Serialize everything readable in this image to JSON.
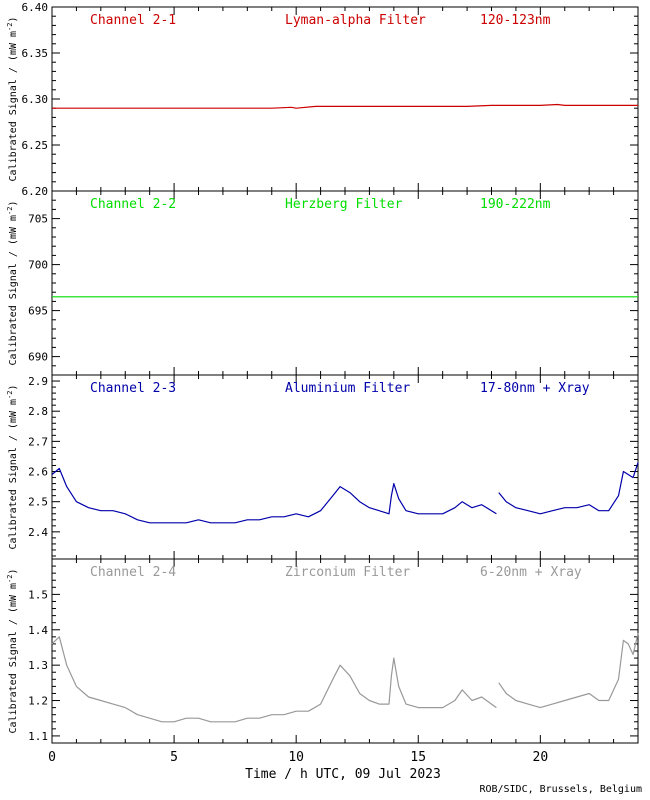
{
  "chart_data": {
    "type": "line",
    "xlabel": "Time / h UTC, 09 Jul 2023",
    "credit": "ROB/SIDC, Brussels, Belgium",
    "xlim": [
      0,
      24
    ],
    "xticks": [
      0,
      5,
      10,
      15,
      20
    ],
    "panels": [
      {
        "name": "Channel 2-1",
        "filter": "Lyman-alpha Filter",
        "band": "120-123nm",
        "color": "#cc0000",
        "ylabel": "Calibrated Signal / (mW m",
        "ylabel_sup": "-2",
        "ylim": [
          6.2,
          6.4
        ],
        "yticks": [
          "6.20",
          "6.25",
          "6.30",
          "6.35",
          "6.40"
        ],
        "series": {
          "x": [
            0,
            1,
            2,
            3,
            4,
            5,
            6,
            7,
            8,
            9,
            9.8,
            10,
            10.8,
            11,
            12,
            13,
            14,
            15,
            16,
            17,
            18,
            19,
            20,
            20.7,
            21,
            22,
            23,
            24
          ],
          "y": [
            6.29,
            6.29,
            6.29,
            6.29,
            6.29,
            6.29,
            6.29,
            6.29,
            6.29,
            6.29,
            6.291,
            6.29,
            6.292,
            6.292,
            6.292,
            6.292,
            6.292,
            6.292,
            6.292,
            6.292,
            6.293,
            6.293,
            6.293,
            6.294,
            6.293,
            6.293,
            6.293,
            6.293
          ]
        }
      },
      {
        "name": "Channel 2-2",
        "filter": "Herzberg Filter",
        "band": "190-222nm",
        "color": "#00dd00",
        "ylabel": "Calibrated Signal / (mW m",
        "ylabel_sup": "-2",
        "ylim": [
          688,
          708
        ],
        "yticks": [
          "690",
          "695",
          "700",
          "705"
        ],
        "series": {
          "x": [
            0,
            4,
            8,
            12,
            16,
            20,
            24
          ],
          "y": [
            696.5,
            696.5,
            696.5,
            696.5,
            696.5,
            696.5,
            696.5
          ]
        }
      },
      {
        "name": "Channel 2-3",
        "filter": "Aluminium Filter",
        "band": "17-80nm + Xray",
        "color": "#0000aa",
        "ylabel": "Calibrated Signal / (mW m",
        "ylabel_sup": "-2",
        "ylim": [
          2.31,
          2.92
        ],
        "yticks": [
          "2.4",
          "2.5",
          "2.6",
          "2.7",
          "2.8",
          "2.9"
        ],
        "series": {
          "x": [
            0,
            0.3,
            0.6,
            1,
            1.5,
            2,
            2.5,
            3,
            3.5,
            4,
            4.5,
            5,
            5.5,
            6,
            6.5,
            7,
            7.5,
            8,
            8.5,
            9,
            9.5,
            10,
            10.5,
            11,
            11.5,
            11.8,
            12.2,
            12.6,
            13,
            13.4,
            13.8,
            13.9,
            14.0,
            14.2,
            14.5,
            15,
            15.5,
            16,
            16.5,
            16.8,
            17.2,
            17.6,
            18.0,
            18.2,
            null,
            18.3,
            18.6,
            19,
            19.5,
            20,
            20.5,
            21,
            21.5,
            22,
            22.4,
            22.8,
            23.2,
            23.4,
            23.6,
            23.8,
            24
          ],
          "y": [
            2.59,
            2.61,
            2.55,
            2.5,
            2.48,
            2.47,
            2.47,
            2.46,
            2.44,
            2.43,
            2.43,
            2.43,
            2.43,
            2.44,
            2.43,
            2.43,
            2.43,
            2.44,
            2.44,
            2.45,
            2.45,
            2.46,
            2.45,
            2.47,
            2.52,
            2.55,
            2.53,
            2.5,
            2.48,
            2.47,
            2.46,
            2.52,
            2.56,
            2.51,
            2.47,
            2.46,
            2.46,
            2.46,
            2.48,
            2.5,
            2.48,
            2.49,
            2.47,
            2.46,
            null,
            2.53,
            2.5,
            2.48,
            2.47,
            2.46,
            2.47,
            2.48,
            2.48,
            2.49,
            2.47,
            2.47,
            2.52,
            2.6,
            2.59,
            2.58,
            2.63
          ]
        }
      },
      {
        "name": "Channel 2-4",
        "filter": "Zirconium Filter",
        "band": "6-20nm + Xray",
        "color": "#999999",
        "ylabel": "Calibrated Signal / (mW m",
        "ylabel_sup": "-2",
        "ylim": [
          1.08,
          1.6
        ],
        "yticks": [
          "1.1",
          "1.2",
          "1.3",
          "1.4",
          "1.5"
        ],
        "series": {
          "x": [
            0,
            0.3,
            0.6,
            1,
            1.5,
            2,
            2.5,
            3,
            3.5,
            4,
            4.5,
            5,
            5.5,
            6,
            6.5,
            7,
            7.5,
            8,
            8.5,
            9,
            9.5,
            10,
            10.5,
            11,
            11.5,
            11.8,
            12.2,
            12.6,
            13,
            13.4,
            13.8,
            13.9,
            14.0,
            14.2,
            14.5,
            15,
            15.5,
            16,
            16.5,
            16.8,
            17.2,
            17.6,
            18.0,
            18.2,
            null,
            18.3,
            18.6,
            19,
            19.5,
            20,
            20.5,
            21,
            21.5,
            22,
            22.4,
            22.8,
            23.2,
            23.4,
            23.6,
            23.8,
            24
          ],
          "y": [
            1.36,
            1.38,
            1.3,
            1.24,
            1.21,
            1.2,
            1.19,
            1.18,
            1.16,
            1.15,
            1.14,
            1.14,
            1.15,
            1.15,
            1.14,
            1.14,
            1.14,
            1.15,
            1.15,
            1.16,
            1.16,
            1.17,
            1.17,
            1.19,
            1.26,
            1.3,
            1.27,
            1.22,
            1.2,
            1.19,
            1.19,
            1.27,
            1.32,
            1.24,
            1.19,
            1.18,
            1.18,
            1.18,
            1.2,
            1.23,
            1.2,
            1.21,
            1.19,
            1.18,
            null,
            1.25,
            1.22,
            1.2,
            1.19,
            1.18,
            1.19,
            1.2,
            1.21,
            1.22,
            1.2,
            1.2,
            1.26,
            1.37,
            1.36,
            1.33,
            1.39
          ]
        }
      }
    ]
  }
}
